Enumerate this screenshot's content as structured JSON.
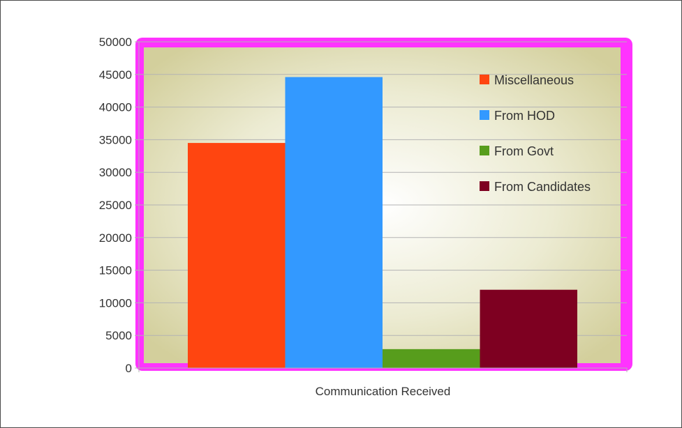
{
  "chart_data": {
    "type": "bar",
    "title": "",
    "xlabel": "",
    "ylabel": "",
    "categories": [
      "Communication Received"
    ],
    "series": [
      {
        "name": "Miscellaneous",
        "values": [
          34500
        ],
        "color": "#ff4510"
      },
      {
        "name": "From HOD",
        "values": [
          44600
        ],
        "color": "#3399ff"
      },
      {
        "name": "From Govt",
        "values": [
          2900
        ],
        "color": "#579d1c"
      },
      {
        "name": "From Candidates",
        "values": [
          12000
        ],
        "color": "#7e0021"
      }
    ],
    "ylim": [
      0,
      50000
    ],
    "yticks": [
      0,
      5000,
      10000,
      15000,
      20000,
      25000,
      30000,
      35000,
      40000,
      45000,
      50000
    ],
    "grid": true,
    "legend_position": "top-right",
    "plot_background": "gradient beige",
    "plot_border_color": "#ff33ff"
  }
}
